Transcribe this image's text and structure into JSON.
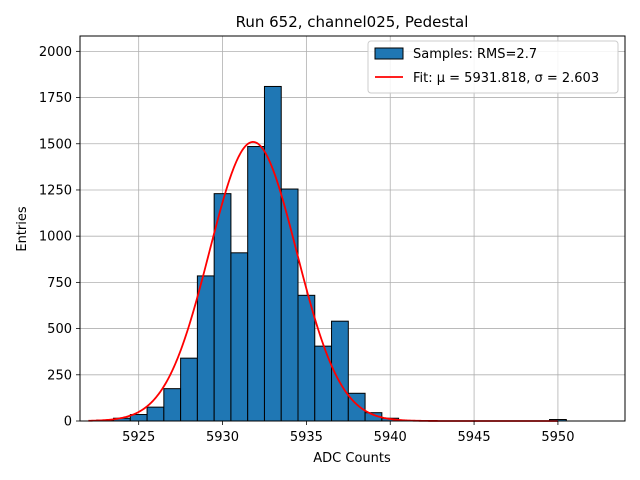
{
  "chart_data": {
    "type": "bar",
    "title": "Run 652, channel025, Pedestal",
    "xlabel": "ADC Counts",
    "ylabel": "Entries",
    "xlim": [
      5921.5,
      5954
    ],
    "ylim": [
      0,
      2083
    ],
    "x_ticks": [
      5925,
      5930,
      5935,
      5940,
      5945,
      5950
    ],
    "y_ticks": [
      0,
      250,
      500,
      750,
      1000,
      1250,
      1500,
      1750,
      2000
    ],
    "grid": true,
    "legend_position": "top-right",
    "bin_width": 1,
    "series": [
      {
        "name": "Samples: RMS=2.7",
        "kind": "histogram",
        "bin_centers": [
          5923,
          5924,
          5925,
          5926,
          5927,
          5928,
          5929,
          5930,
          5931,
          5932,
          5933,
          5934,
          5935,
          5936,
          5937,
          5938,
          5939,
          5940,
          5950
        ],
        "counts": [
          5,
          15,
          35,
          75,
          175,
          340,
          785,
          1230,
          910,
          1485,
          1810,
          1255,
          680,
          405,
          540,
          150,
          45,
          15,
          8
        ],
        "color": "#1f77b4"
      },
      {
        "name": "Fit: μ = 5931.818, σ = 2.603",
        "kind": "gaussian",
        "amplitude": 1510,
        "mu": 5931.818,
        "sigma": 2.603,
        "x_range": [
          5922,
          5950
        ],
        "color": "#ff0000"
      }
    ]
  }
}
